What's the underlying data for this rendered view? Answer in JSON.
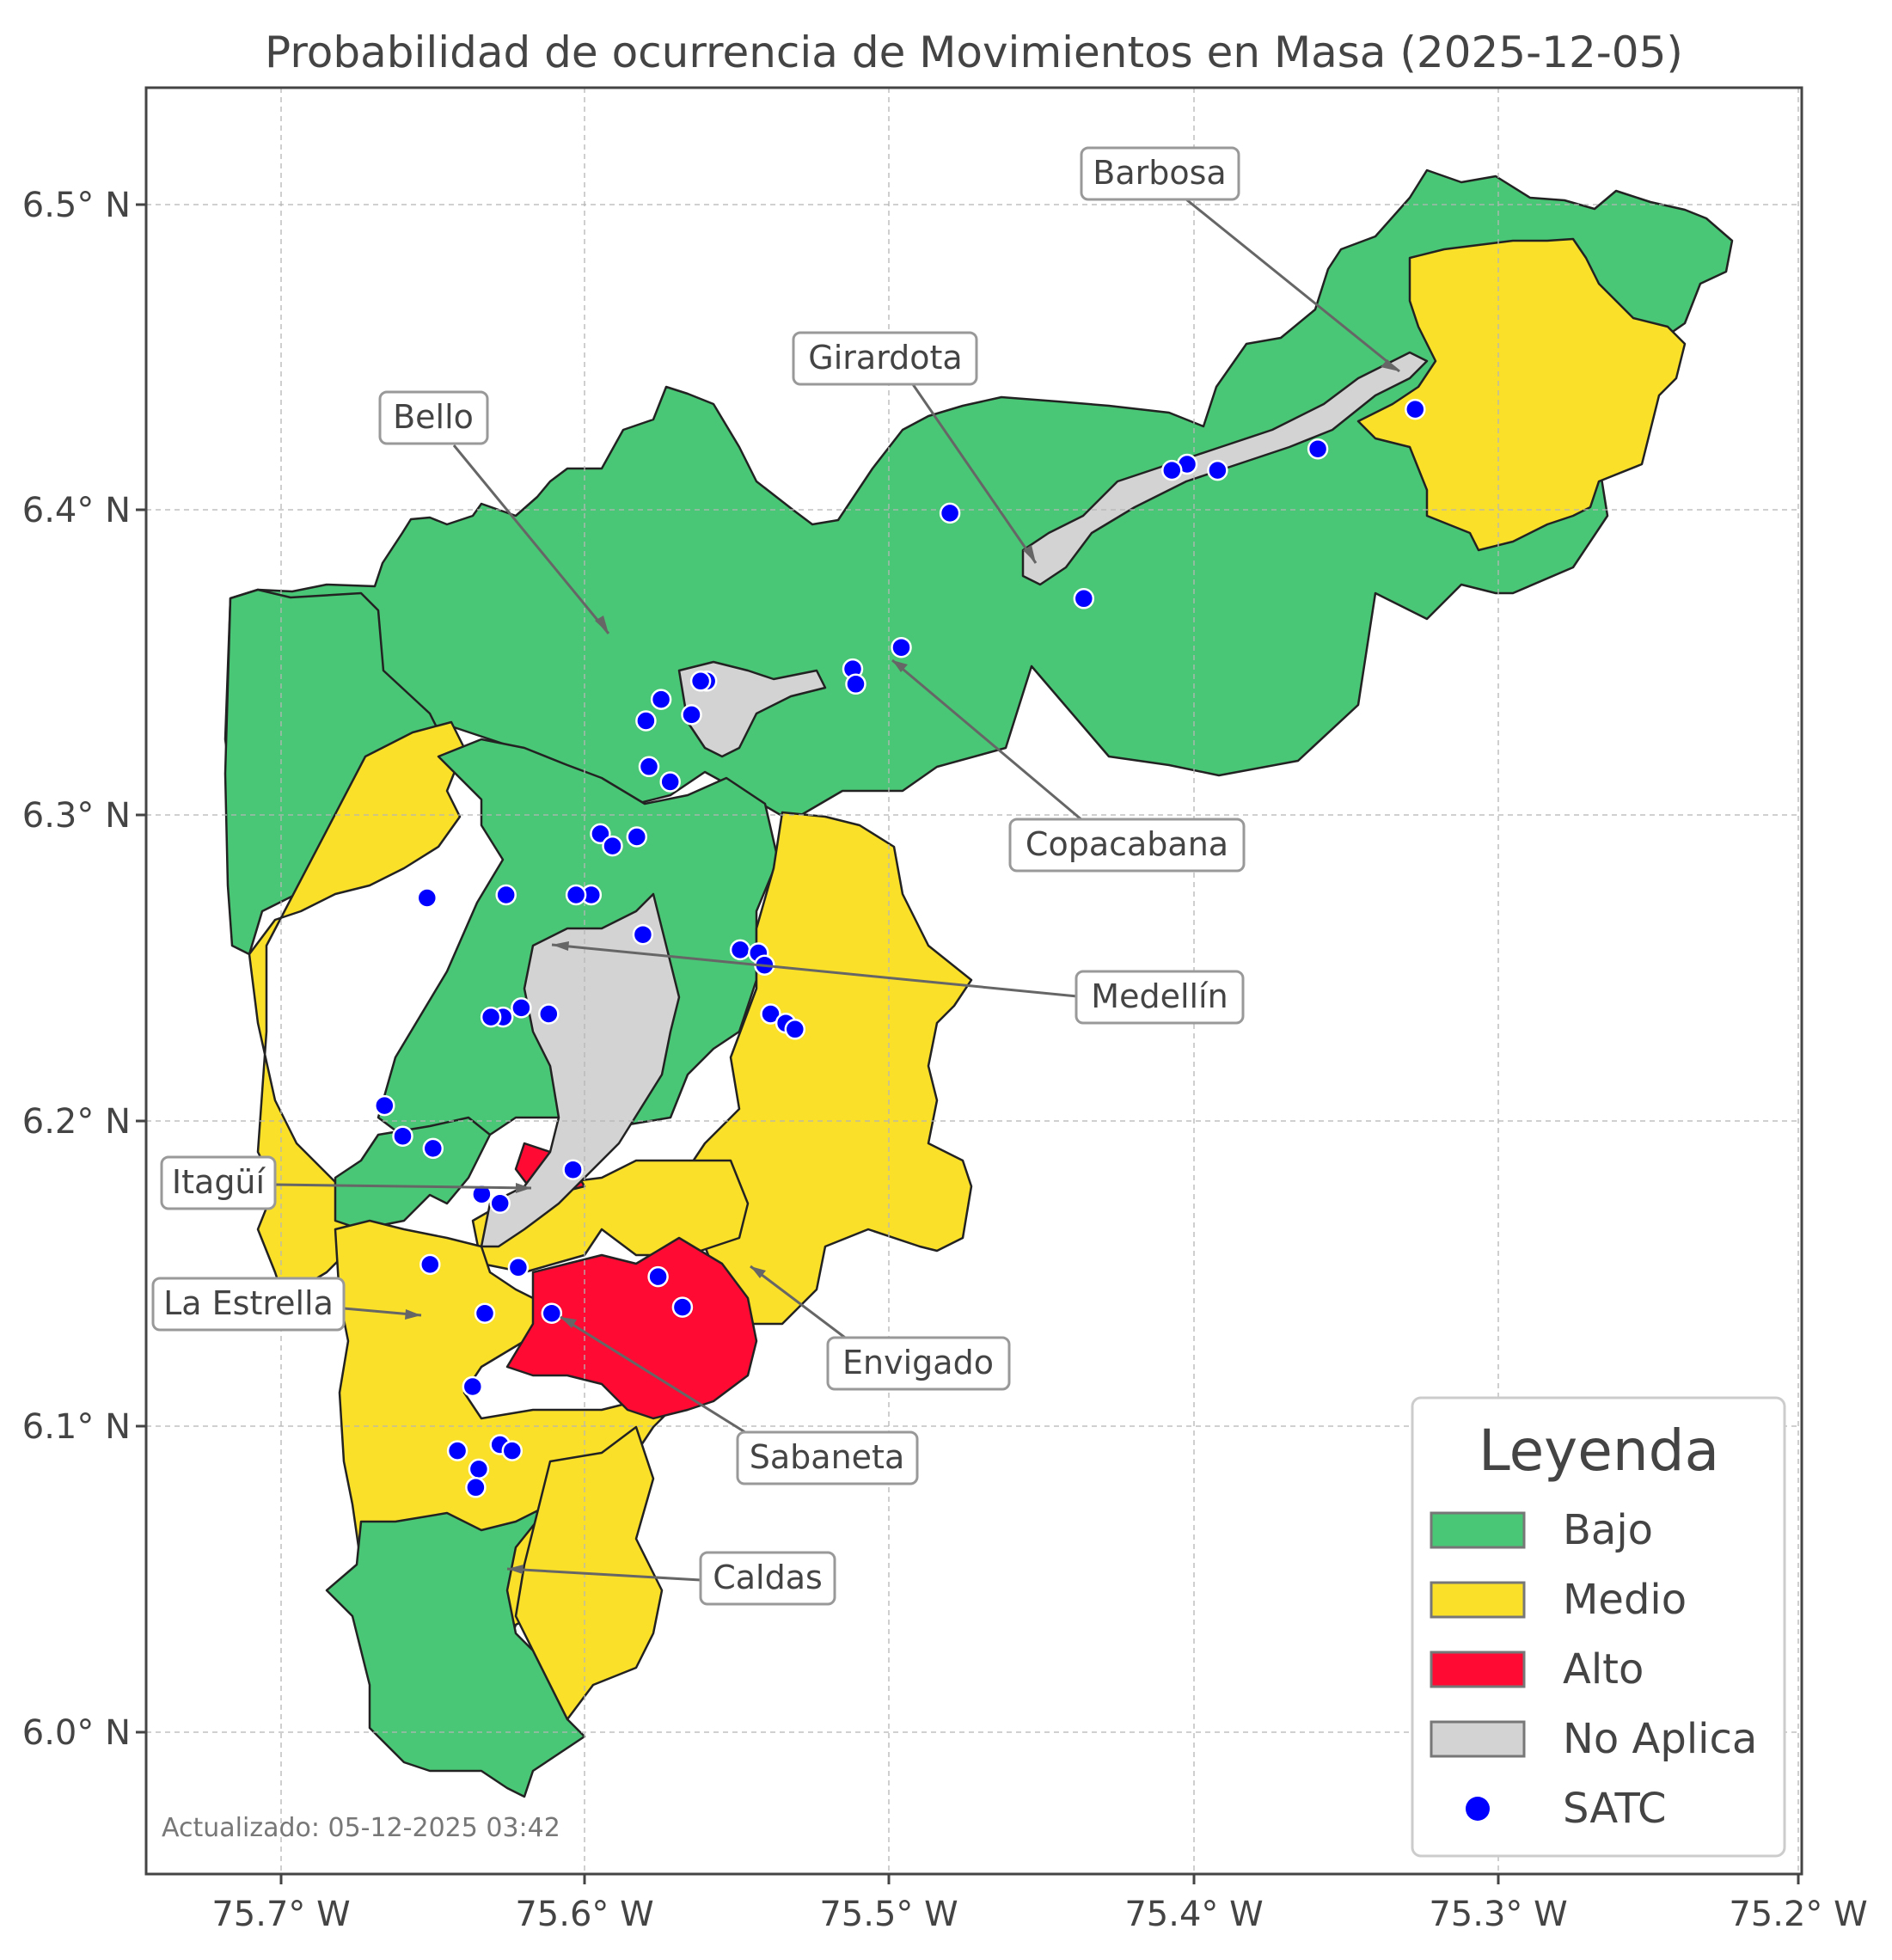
{
  "title": "Probabilidad de ocurrencia de Movimientos en Masa (2025-12-05)",
  "updated": "Actualizado: 05-12-2025 03:42",
  "axes": {
    "x_ticks": [
      "75.7° W",
      "75.6° W",
      "75.5° W",
      "75.4° W",
      "75.3° W",
      "75.2° W"
    ],
    "y_ticks": [
      "6.5° N",
      "6.4° N",
      "6.3° N",
      "6.2° N",
      "6.1° N",
      "6.0° N"
    ]
  },
  "colors": {
    "bajo": "#4ac776",
    "medio": "#fbe02a",
    "alto": "#ff0a33",
    "no_aplica": "#d3d3d3",
    "satc": "#0000ff",
    "boundary": "#222222",
    "annotation": "#666666"
  },
  "municipalities": [
    {
      "name": "Barbosa",
      "risk": "Bajo / Medio",
      "lon": -75.33,
      "lat": 6.44
    },
    {
      "name": "Girardota",
      "risk": "Bajo",
      "lon": -75.445,
      "lat": 6.38
    },
    {
      "name": "Bello",
      "risk": "Bajo",
      "lon": -75.59,
      "lat": 6.36
    },
    {
      "name": "Copacabana",
      "risk": "Bajo",
      "lon": -75.5,
      "lat": 6.35
    },
    {
      "name": "Medellín",
      "risk": "Bajo / Medio / No Aplica",
      "lon": -75.61,
      "lat": 6.26
    },
    {
      "name": "Itagüí",
      "risk": "Alto",
      "lon": -75.62,
      "lat": 6.18
    },
    {
      "name": "La Estrella",
      "risk": "Medio",
      "lon": -75.655,
      "lat": 6.14
    },
    {
      "name": "Envigado",
      "risk": "Alto / Medio",
      "lon": -75.54,
      "lat": 6.155
    },
    {
      "name": "Sabaneta",
      "risk": "Alto",
      "lon": -75.61,
      "lat": 6.14
    },
    {
      "name": "Caldas",
      "risk": "Bajo / Medio",
      "lon": -75.635,
      "lat": 6.055
    }
  ],
  "legend": {
    "title": "Leyenda",
    "items": [
      {
        "label": "Bajo",
        "kind": "patch",
        "color": "#4ac776"
      },
      {
        "label": "Medio",
        "kind": "patch",
        "color": "#fbe02a"
      },
      {
        "label": "Alto",
        "kind": "patch",
        "color": "#ff0a33"
      },
      {
        "label": "No Aplica",
        "kind": "patch",
        "color": "#d3d3d3"
      },
      {
        "label": "SATC",
        "kind": "marker",
        "color": "#0000ff"
      }
    ]
  },
  "satc_stations": [
    [
      -75.327,
      6.433
    ],
    [
      -75.359,
      6.42
    ],
    [
      -75.392,
      6.413
    ],
    [
      -75.402,
      6.415
    ],
    [
      -75.407,
      6.413
    ],
    [
      -75.48,
      6.399
    ],
    [
      -75.436,
      6.371
    ],
    [
      -75.496,
      6.355
    ],
    [
      -75.512,
      6.348
    ],
    [
      -75.511,
      6.343
    ],
    [
      -75.56,
      6.344
    ],
    [
      -75.562,
      6.344
    ],
    [
      -75.575,
      6.338
    ],
    [
      -75.58,
      6.331
    ],
    [
      -75.565,
      6.333
    ],
    [
      -75.579,
      6.316
    ],
    [
      -75.572,
      6.311
    ],
    [
      -75.595,
      6.294
    ],
    [
      -75.583,
      6.293
    ],
    [
      -75.591,
      6.29
    ],
    [
      -75.652,
      6.273
    ],
    [
      -75.626,
      6.274
    ],
    [
      -75.598,
      6.274
    ],
    [
      -75.603,
      6.274
    ],
    [
      -75.581,
      6.261
    ],
    [
      -75.549,
      6.256
    ],
    [
      -75.543,
      6.255
    ],
    [
      -75.541,
      6.251
    ],
    [
      -75.621,
      6.237
    ],
    [
      -75.627,
      6.234
    ],
    [
      -75.631,
      6.234
    ],
    [
      -75.612,
      6.235
    ],
    [
      -75.539,
      6.235
    ],
    [
      -75.534,
      6.232
    ],
    [
      -75.531,
      6.23
    ],
    [
      -75.666,
      6.205
    ],
    [
      -75.66,
      6.195
    ],
    [
      -75.65,
      6.191
    ],
    [
      -75.604,
      6.184
    ],
    [
      -75.634,
      6.176
    ],
    [
      -75.628,
      6.173
    ],
    [
      -75.651,
      6.153
    ],
    [
      -75.622,
      6.152
    ],
    [
      -75.576,
      6.149
    ],
    [
      -75.633,
      6.137
    ],
    [
      -75.611,
      6.137
    ],
    [
      -75.568,
      6.139
    ],
    [
      -75.637,
      6.113
    ],
    [
      -75.642,
      6.092
    ],
    [
      -75.628,
      6.094
    ],
    [
      -75.624,
      6.092
    ],
    [
      -75.635,
      6.086
    ],
    [
      -75.636,
      6.08
    ]
  ]
}
